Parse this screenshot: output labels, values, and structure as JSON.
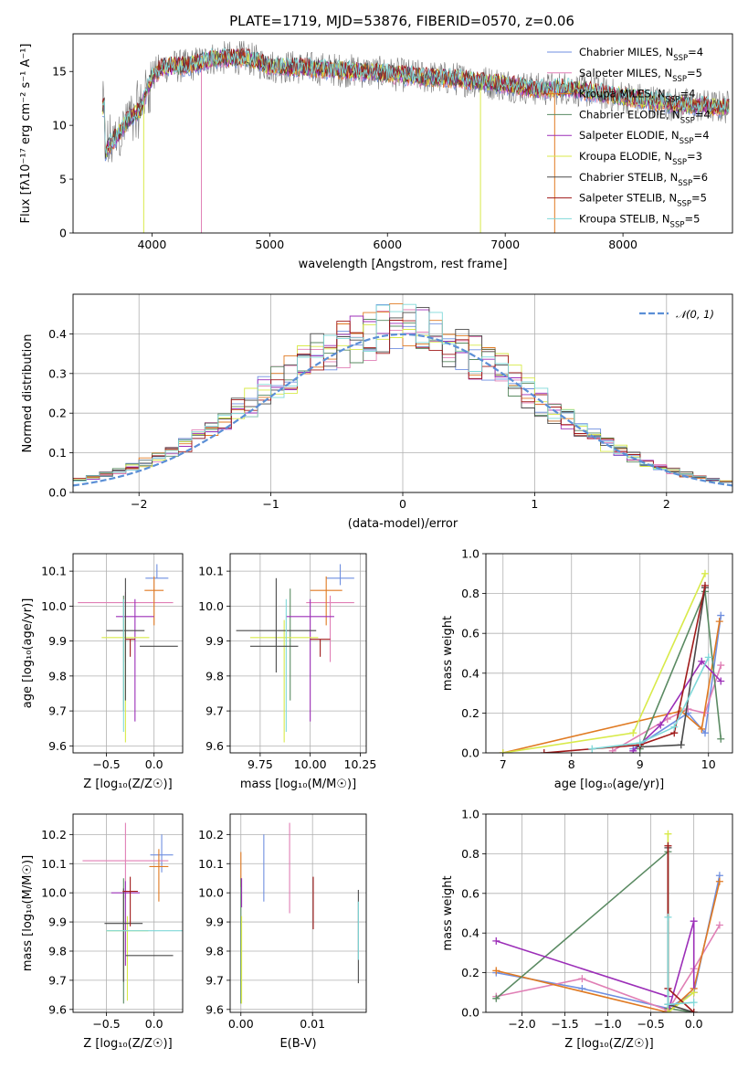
{
  "figure": {
    "title": "PLATE=1719, MJD=53876, FIBERID=0570, z=0.06"
  },
  "colors": {
    "Chabrier MILES": "#6f8fe0",
    "Salpeter MILES": "#e07fb5",
    "Kroupa MILES": "#e07a22",
    "Chabrier ELODIE": "#5a8a62",
    "Salpeter ELODIE": "#9c2fb8",
    "Kroupa ELODIE": "#d8ea4a",
    "Chabrier STELIB": "#4a4a4a",
    "Salpeter STELIB": "#a01a1a",
    "Kroupa STELIB": "#7fd8d8"
  },
  "chart_data": [
    {
      "id": "spectrum",
      "type": "line",
      "xlabel": "wavelength [Angstrom, rest frame]",
      "ylabel": "Flux [fλ10⁻¹⁷ erg cm⁻² s⁻¹ A⁻¹]",
      "xlim": [
        3330,
        8930
      ],
      "ylim": [
        0,
        18.5
      ],
      "xticks": [
        4000,
        5000,
        6000,
        7000,
        8000
      ],
      "yticks": [
        0,
        5,
        10,
        15
      ],
      "legend_position": "upper-right",
      "legend": [
        {
          "model": "Chabrier MILES",
          "n_ssp": 4
        },
        {
          "model": "Salpeter MILES",
          "n_ssp": 5
        },
        {
          "model": "Kroupa MILES",
          "n_ssp": 4
        },
        {
          "model": "Chabrier ELODIE",
          "n_ssp": 4
        },
        {
          "model": "Salpeter ELODIE",
          "n_ssp": 4
        },
        {
          "model": "Kroupa ELODIE",
          "n_ssp": 3
        },
        {
          "model": "Chabrier STELIB",
          "n_ssp": 6
        },
        {
          "model": "Salpeter STELIB",
          "n_ssp": 5
        },
        {
          "model": "Kroupa STELIB",
          "n_ssp": 5
        }
      ],
      "continuum": [
        [
          3600,
          7.5
        ],
        [
          3700,
          9
        ],
        [
          3800,
          10.5
        ],
        [
          3900,
          11.5
        ],
        [
          4000,
          14.5
        ],
        [
          4100,
          15.5
        ],
        [
          4300,
          15.5
        ],
        [
          4500,
          16.2
        ],
        [
          4800,
          16.3
        ],
        [
          5000,
          15.5
        ],
        [
          5200,
          15.4
        ],
        [
          5500,
          15.2
        ],
        [
          5800,
          15.0
        ],
        [
          6000,
          14.8
        ],
        [
          6300,
          14.5
        ],
        [
          6600,
          14.3
        ],
        [
          7000,
          13.8
        ],
        [
          7300,
          13.3
        ],
        [
          7500,
          13.5
        ],
        [
          7800,
          13.0
        ],
        [
          8100,
          12.5
        ],
        [
          8400,
          12.0
        ],
        [
          8800,
          11.7
        ]
      ]
    },
    {
      "id": "residual-histogram",
      "type": "histogram",
      "xlabel": "(data-model)/error",
      "ylabel": "Normed distribution",
      "xlim": [
        -2.5,
        2.5
      ],
      "ylim": [
        0,
        0.5
      ],
      "xticks": [
        -2,
        -1,
        0,
        1,
        2
      ],
      "yticks": [
        0.0,
        0.1,
        0.2,
        0.3,
        0.4
      ],
      "reference_curve": "N(0,1)",
      "legend_label": "𝒩(0, 1)",
      "legend_position": "upper-right",
      "grid": true
    },
    {
      "id": "age-vs-Z",
      "type": "errorbar",
      "xlabel": "Z [log₁₀(Z/Z☉)]",
      "ylabel": "age  [log₁₀(age/yr)]",
      "xlim": [
        -0.85,
        0.3
      ],
      "ylim": [
        9.58,
        10.15
      ],
      "xticks": [
        -0.5,
        0.0
      ],
      "yticks": [
        9.6,
        9.7,
        9.8,
        9.9,
        10.0,
        10.1
      ],
      "grid": true,
      "points": [
        {
          "model": "Chabrier MILES",
          "x": 0.03,
          "xerr": [
            0.12,
            0.12
          ],
          "y": 10.08,
          "yerr": [
            0.0,
            0.04
          ]
        },
        {
          "model": "Salpeter MILES",
          "x": -0.3,
          "xerr": [
            0.5,
            0.5
          ],
          "y": 10.01,
          "yerr": [
            0.17,
            0.03
          ]
        },
        {
          "model": "Kroupa MILES",
          "x": 0.0,
          "xerr": [
            0.1,
            0.1
          ],
          "y": 10.045,
          "yerr": [
            0.1,
            0.04
          ]
        },
        {
          "model": "Chabrier ELODIE",
          "x": -0.32,
          "xerr": [
            0.0,
            0.0
          ],
          "y": 9.9,
          "yerr": [
            0.2,
            0.13
          ]
        },
        {
          "model": "Salpeter ELODIE",
          "x": -0.2,
          "xerr": [
            0.2,
            0.2
          ],
          "y": 9.97,
          "yerr": [
            0.3,
            0.05
          ]
        },
        {
          "model": "Kroupa ELODIE",
          "x": -0.3,
          "xerr": [
            0.25,
            0.25
          ],
          "y": 9.91,
          "yerr": [
            0.3,
            0.05
          ]
        },
        {
          "model": "Chabrier STELIB",
          "x": -0.3,
          "xerr": [
            0.2,
            0.2
          ],
          "y": 9.93,
          "yerr": [
            0.2,
            0.15
          ]
        },
        {
          "model": "Salpeter STELIB",
          "x": -0.25,
          "xerr": [
            0.05,
            0.05
          ],
          "y": 9.905,
          "yerr": [
            0.05,
            0.0
          ]
        },
        {
          "model": "Kroupa STELIB",
          "x": -0.32,
          "xerr": [
            0.0,
            0.0
          ],
          "y": 9.94,
          "yerr": [
            0.3,
            0.08
          ]
        },
        {
          "model": "Chabrier STELIB",
          "x": 0.05,
          "xerr": [
            0.2,
            0.2
          ],
          "y": 9.885,
          "yerr": [
            0.0,
            0.0
          ]
        }
      ]
    },
    {
      "id": "age-vs-mass",
      "type": "errorbar",
      "xlabel": "mass [log₁₀(M/M☉)]",
      "ylabel": "",
      "xlim": [
        9.6,
        10.28
      ],
      "ylim": [
        9.58,
        10.15
      ],
      "xticks": [
        9.75,
        10.0,
        10.25
      ],
      "yticks": [
        9.6,
        9.7,
        9.8,
        9.9,
        10.0,
        10.1
      ],
      "grid": true,
      "points": [
        {
          "model": "Chabrier MILES",
          "x": 10.15,
          "xerr": [
            0.07,
            0.07
          ],
          "y": 10.08,
          "yerr": [
            0.02,
            0.04
          ]
        },
        {
          "model": "Salpeter MILES",
          "x": 10.1,
          "xerr": [
            0.12,
            0.12
          ],
          "y": 10.01,
          "yerr": [
            0.17,
            0.02
          ]
        },
        {
          "model": "Kroupa MILES",
          "x": 10.08,
          "xerr": [
            0.08,
            0.08
          ],
          "y": 10.045,
          "yerr": [
            0.1,
            0.04
          ]
        },
        {
          "model": "Chabrier ELODIE",
          "x": 9.9,
          "xerr": [
            0.0,
            0.0
          ],
          "y": 9.93,
          "yerr": [
            0.2,
            0.12
          ]
        },
        {
          "model": "Salpeter ELODIE",
          "x": 10.0,
          "xerr": [
            0.12,
            0.12
          ],
          "y": 9.97,
          "yerr": [
            0.3,
            0.05
          ]
        },
        {
          "model": "Kroupa ELODIE",
          "x": 9.87,
          "xerr": [
            0.17,
            0.17
          ],
          "y": 9.91,
          "yerr": [
            0.3,
            0.05
          ]
        },
        {
          "model": "Chabrier STELIB",
          "x": 9.83,
          "xerr": [
            0.2,
            0.2
          ],
          "y": 9.93,
          "yerr": [
            0.12,
            0.15
          ]
        },
        {
          "model": "Salpeter STELIB",
          "x": 10.05,
          "xerr": [
            0.05,
            0.05
          ],
          "y": 9.905,
          "yerr": [
            0.05,
            0.0
          ]
        },
        {
          "model": "Kroupa STELIB",
          "x": 9.88,
          "xerr": [
            0.0,
            0.0
          ],
          "y": 9.94,
          "yerr": [
            0.3,
            0.08
          ]
        },
        {
          "model": "Chabrier STELIB",
          "x": 9.82,
          "xerr": [
            0.12,
            0.12
          ],
          "y": 9.885,
          "yerr": [
            0.0,
            0.0
          ]
        }
      ]
    },
    {
      "id": "mass-weight-vs-age",
      "type": "line",
      "xlabel": "age  [log₁₀(age/yr)]",
      "ylabel": "mass weight",
      "xlim": [
        6.75,
        10.35
      ],
      "ylim": [
        0,
        1
      ],
      "xticks": [
        7,
        8,
        9,
        10
      ],
      "yticks": [
        0.0,
        0.2,
        0.4,
        0.6,
        0.8,
        1.0
      ],
      "grid": true,
      "series": [
        {
          "model": "Chabrier MILES",
          "x": [
            8.9,
            9.7,
            9.95,
            10.18
          ],
          "y": [
            0.02,
            0.2,
            0.1,
            0.69
          ]
        },
        {
          "model": "Salpeter MILES",
          "x": [
            8.6,
            9.4,
            9.7,
            9.95,
            10.18
          ],
          "y": [
            0.01,
            0.17,
            0.22,
            0.2,
            0.44
          ]
        },
        {
          "model": "Kroupa MILES",
          "x": [
            7.0,
            9.6,
            9.9,
            10.16
          ],
          "y": [
            0.0,
            0.21,
            0.12,
            0.66
          ]
        },
        {
          "model": "Chabrier ELODIE",
          "x": [
            9.0,
            9.95,
            10.18
          ],
          "y": [
            0.02,
            0.81,
            0.07
          ]
        },
        {
          "model": "Salpeter ELODIE",
          "x": [
            8.9,
            9.3,
            9.9,
            10.18
          ],
          "y": [
            0.01,
            0.14,
            0.46,
            0.36
          ]
        },
        {
          "model": "Kroupa ELODIE",
          "x": [
            7.0,
            8.9,
            9.95
          ],
          "y": [
            0.0,
            0.1,
            0.9
          ]
        },
        {
          "model": "Chabrier STELIB",
          "x": [
            9.0,
            9.6,
            9.95
          ],
          "y": [
            0.03,
            0.04,
            0.83
          ]
        },
        {
          "model": "Salpeter STELIB",
          "x": [
            7.6,
            9.0,
            9.5,
            9.95
          ],
          "y": [
            0.0,
            0.04,
            0.1,
            0.84
          ]
        },
        {
          "model": "Kroupa STELIB",
          "x": [
            8.3,
            9.0,
            9.5,
            10.0
          ],
          "y": [
            0.02,
            0.05,
            0.13,
            0.48
          ]
        }
      ]
    },
    {
      "id": "mass-vs-Z",
      "type": "errorbar",
      "xlabel": "Z [log₁₀(Z/Z☉)]",
      "ylabel": "mass [log₁₀(M/M☉)]",
      "xlim": [
        -0.85,
        0.3
      ],
      "ylim": [
        9.59,
        10.27
      ],
      "xticks": [
        -0.5,
        0.0
      ],
      "yticks": [
        9.6,
        9.7,
        9.8,
        9.9,
        10.0,
        10.1,
        10.2
      ],
      "grid": true,
      "points": [
        {
          "model": "Chabrier MILES",
          "x": 0.08,
          "xerr": [
            0.12,
            0.12
          ],
          "y": 10.13,
          "yerr": [
            0.06,
            0.07
          ]
        },
        {
          "model": "Salpeter MILES",
          "x": -0.3,
          "xerr": [
            0.45,
            0.45
          ],
          "y": 10.11,
          "yerr": [
            0.13,
            0.13
          ]
        },
        {
          "model": "Kroupa MILES",
          "x": 0.05,
          "xerr": [
            0.1,
            0.1
          ],
          "y": 10.09,
          "yerr": [
            0.12,
            0.06
          ]
        },
        {
          "model": "Chabrier ELODIE",
          "x": -0.32,
          "xerr": [
            0.0,
            0.0
          ],
          "y": 9.88,
          "yerr": [
            0.26,
            0.17
          ]
        },
        {
          "model": "Salpeter ELODIE",
          "x": -0.3,
          "xerr": [
            0.15,
            0.15
          ],
          "y": 10.0,
          "yerr": [
            0.25,
            0.04
          ]
        },
        {
          "model": "Kroupa ELODIE",
          "x": -0.28,
          "xerr": [
            0.22,
            0.22
          ],
          "y": 9.87,
          "yerr": [
            0.24,
            0.05
          ]
        },
        {
          "model": "Chabrier STELIB",
          "x": -0.32,
          "xerr": [
            0.2,
            0.2
          ],
          "y": 9.895,
          "yerr": [
            0.2,
            0.12
          ]
        },
        {
          "model": "Salpeter STELIB",
          "x": -0.25,
          "xerr": [
            0.08,
            0.08
          ],
          "y": 10.005,
          "yerr": [
            0.12,
            0.05
          ]
        },
        {
          "model": "Kroupa STELIB",
          "x": -0.1,
          "xerr": [
            0.4,
            0.4
          ],
          "y": 9.87,
          "yerr": [
            0.0,
            0.0
          ]
        },
        {
          "model": "Chabrier STELIB",
          "x": -0.05,
          "xerr": [
            0.25,
            0.25
          ],
          "y": 9.785,
          "yerr": [
            0.0,
            0.0
          ]
        }
      ]
    },
    {
      "id": "mass-vs-ebv",
      "type": "errorbar",
      "xlabel": "E(B-V)",
      "ylabel": "",
      "xlim": [
        -0.0015,
        0.0175
      ],
      "ylim": [
        9.59,
        10.27
      ],
      "xticks": [
        0.0,
        0.01
      ],
      "yticks": [
        9.6,
        9.7,
        9.8,
        9.9,
        10.0,
        10.1,
        10.2
      ],
      "grid": true,
      "points": [
        {
          "model": "Chabrier MILES",
          "x": 0.0032,
          "y": 10.1,
          "yerr": [
            0.13,
            0.1
          ]
        },
        {
          "model": "Salpeter MILES",
          "x": 0.0068,
          "y": 10.09,
          "yerr": [
            0.16,
            0.15
          ]
        },
        {
          "model": "Kroupa MILES",
          "x": 0.0,
          "y": 10.09,
          "yerr": [
            0.07,
            0.05
          ]
        },
        {
          "model": "Chabrier ELODIE",
          "x": 0.0,
          "y": 9.88,
          "yerr": [
            0.26,
            0.17
          ]
        },
        {
          "model": "Salpeter ELODIE",
          "x": 0.0001,
          "y": 10.0,
          "yerr": [
            0.05,
            0.05
          ]
        },
        {
          "model": "Kroupa ELODIE",
          "x": 0.0001,
          "y": 9.87,
          "yerr": [
            0.25,
            0.05
          ]
        },
        {
          "model": "Chabrier STELIB",
          "x": 0.0164,
          "y": 9.85,
          "yerr": [
            0.16,
            0.16
          ]
        },
        {
          "model": "Salpeter STELIB",
          "x": 0.0101,
          "y": 9.965,
          "yerr": [
            0.09,
            0.09
          ]
        },
        {
          "model": "Kroupa STELIB",
          "x": 0.0164,
          "y": 9.87,
          "yerr": [
            0.1,
            0.1
          ]
        }
      ]
    },
    {
      "id": "mass-weight-vs-Z",
      "type": "line",
      "xlabel": "Z [log₁₀(Z/Z☉)]",
      "ylabel": "mass weight",
      "xlim": [
        -2.42,
        0.45
      ],
      "ylim": [
        0,
        1
      ],
      "xticks": [
        -2.0,
        -1.5,
        -1.0,
        -0.5,
        0.0
      ],
      "yticks": [
        0.0,
        0.2,
        0.4,
        0.6,
        0.8,
        1.0
      ],
      "grid": true,
      "series": [
        {
          "model": "Chabrier MILES",
          "x": [
            -2.3,
            -1.3,
            -0.3,
            0.0,
            0.3
          ],
          "y": [
            0.2,
            0.12,
            0.02,
            0.1,
            0.69
          ]
        },
        {
          "model": "Salpeter MILES",
          "x": [
            -2.3,
            -1.3,
            -0.3,
            0.0,
            0.3
          ],
          "y": [
            0.08,
            0.17,
            0.01,
            0.22,
            0.44
          ]
        },
        {
          "model": "Kroupa MILES",
          "x": [
            -2.3,
            -0.3,
            0.0,
            0.3
          ],
          "y": [
            0.21,
            0.0,
            0.12,
            0.66
          ]
        },
        {
          "model": "Chabrier ELODIE",
          "x": [
            -2.3,
            -0.3,
            -0.3,
            0.0
          ],
          "y": [
            0.07,
            0.81,
            0.02,
            0.0
          ]
        },
        {
          "model": "Salpeter ELODIE",
          "x": [
            -2.3,
            -0.3,
            -0.3,
            0.0,
            0.0
          ],
          "y": [
            0.36,
            0.08,
            0.0,
            0.46,
            0.1
          ]
        },
        {
          "model": "Kroupa ELODIE",
          "x": [
            -0.3,
            -0.3,
            0.0
          ],
          "y": [
            0.9,
            0.0,
            0.1
          ]
        },
        {
          "model": "Chabrier STELIB",
          "x": [
            -0.3,
            -0.3,
            0.0
          ],
          "y": [
            0.83,
            0.04,
            0.0
          ]
        },
        {
          "model": "Salpeter STELIB",
          "x": [
            -0.3,
            -0.3,
            0.0
          ],
          "y": [
            0.84,
            0.12,
            0.0
          ]
        },
        {
          "model": "Kroupa STELIB",
          "x": [
            -0.3,
            -0.3,
            0.0
          ],
          "y": [
            0.48,
            0.04,
            0.05
          ]
        }
      ]
    }
  ]
}
